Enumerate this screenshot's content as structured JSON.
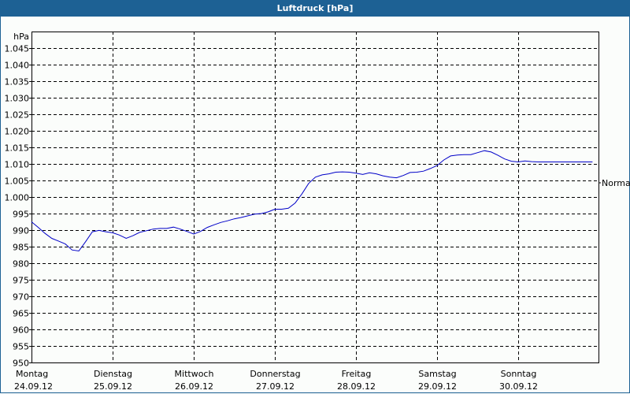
{
  "window": {
    "title": "Luftdruck [hPa]"
  },
  "colors": {
    "titlebar": "#1d6194",
    "line": "#0000c8",
    "grid": "#000000",
    "background": "#fbfdfb"
  },
  "chart_data": {
    "type": "line",
    "title": "Luftdruck [hPa]",
    "ylabel": "hPa",
    "xlabel": "",
    "ylim": [
      950,
      1050
    ],
    "grid": true,
    "yticks": [
      950,
      955,
      960,
      965,
      970,
      975,
      980,
      985,
      990,
      995,
      1000,
      1005,
      1010,
      1015,
      1020,
      1025,
      1030,
      1035,
      1040,
      1045
    ],
    "ytick_labels": [
      "950",
      "955",
      "960",
      "965",
      "970",
      "975",
      "980",
      "985",
      "990",
      "995",
      "1.000",
      "1.005",
      "1.010",
      "1.015",
      "1.020",
      "1.025",
      "1.030",
      "1.035",
      "1.040",
      "1.045"
    ],
    "x_days": [
      {
        "day": "Montag",
        "date": "24.09.12"
      },
      {
        "day": "Dienstag",
        "date": "25.09.12"
      },
      {
        "day": "Mittwoch",
        "date": "26.09.12"
      },
      {
        "day": "Donnerstag",
        "date": "27.09.12"
      },
      {
        "day": "Freitag",
        "date": "28.09.12"
      },
      {
        "day": "Samstag",
        "date": "29.09.12"
      },
      {
        "day": "Sonntag",
        "date": "30.09.12"
      }
    ],
    "reference_line": {
      "label": "Normal",
      "value": 1005
    },
    "series": [
      {
        "name": "Luftdruck",
        "x_hours": [
          0,
          2,
          4,
          6,
          8,
          10,
          12,
          14,
          16,
          18,
          20,
          22,
          24,
          26,
          28,
          30,
          32,
          34,
          36,
          38,
          40,
          42,
          44,
          46,
          48,
          50,
          52,
          54,
          56,
          58,
          60,
          62,
          64,
          66,
          68,
          70,
          72,
          74,
          76,
          78,
          80,
          82,
          84,
          86,
          88,
          90,
          92,
          94,
          96,
          98,
          100,
          102,
          104,
          106,
          108,
          110,
          112,
          114,
          116,
          118,
          120,
          122,
          124,
          126,
          128,
          130,
          132,
          134,
          136,
          138,
          140,
          142,
          144,
          146,
          148,
          150,
          152,
          154,
          156,
          158,
          160,
          162,
          164,
          166,
          168
        ],
        "values": [
          992.5,
          990.8,
          989.0,
          987.5,
          986.7,
          985.8,
          984.0,
          983.7,
          986.5,
          989.5,
          989.9,
          989.5,
          989.2,
          988.5,
          987.5,
          988.3,
          989.3,
          989.8,
          990.3,
          990.5,
          990.5,
          990.9,
          990.3,
          989.6,
          988.8,
          989.6,
          990.8,
          991.6,
          992.3,
          992.8,
          993.4,
          993.8,
          994.3,
          994.8,
          995.0,
          995.5,
          996.3,
          996.3,
          996.6,
          998.2,
          1000.9,
          1004.1,
          1006.0,
          1006.7,
          1007.0,
          1007.5,
          1007.6,
          1007.5,
          1007.2,
          1006.8,
          1007.3,
          1007.0,
          1006.4,
          1006.0,
          1005.8,
          1006.5,
          1007.4,
          1007.5,
          1007.8,
          1008.6,
          1009.5,
          1011.2,
          1012.4,
          1012.7,
          1012.8,
          1012.8,
          1013.4,
          1014.0,
          1013.6,
          1012.6,
          1011.5,
          1010.8,
          1010.6,
          1010.9,
          1010.7,
          1010.6,
          1010.6,
          1010.6,
          1010.6,
          1010.6,
          1010.6,
          1010.6,
          1010.6,
          1010.6,
          1010.6
        ]
      }
    ]
  }
}
